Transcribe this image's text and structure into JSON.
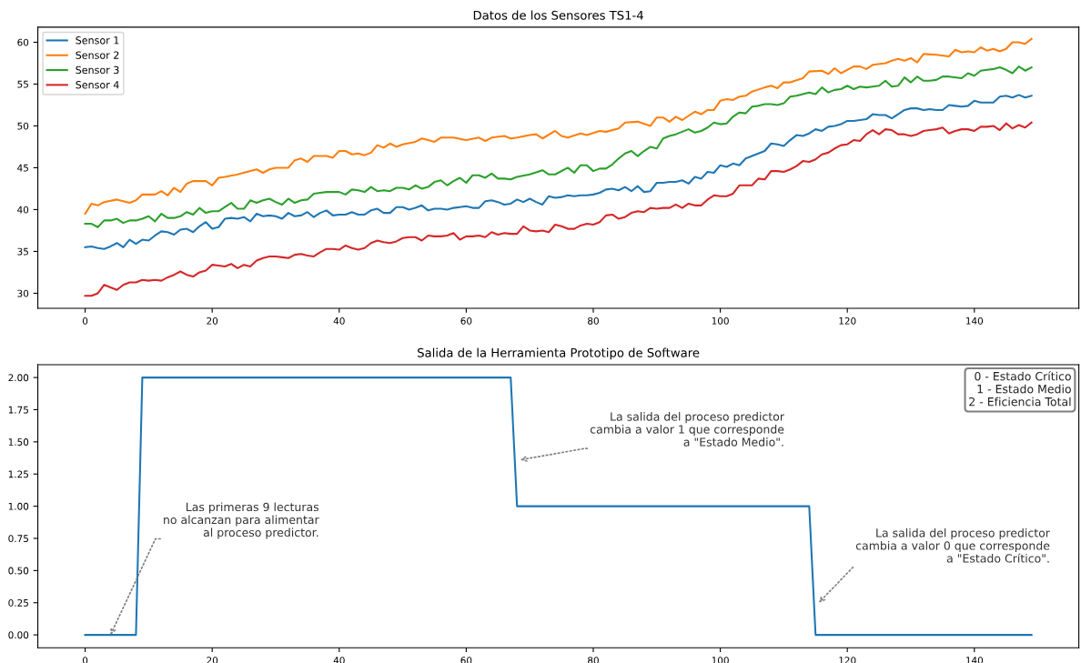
{
  "chart_data": [
    {
      "type": "line",
      "title": "Datos de los Sensores TS1-4",
      "legend": "top left",
      "xlim": [
        -7.45,
        156.45
      ],
      "ylim": [
        28.2,
        61.8
      ],
      "xticks": [
        0,
        20,
        40,
        60,
        80,
        100,
        120,
        140
      ],
      "yticks": [
        30,
        35,
        40,
        45,
        50,
        55,
        60
      ],
      "series": [
        {
          "name": "Sensor 1",
          "color": "#1f77b4",
          "x": [
            0,
            1,
            2,
            3,
            4,
            5,
            6,
            7,
            8,
            9,
            10,
            11,
            12,
            13,
            14,
            15,
            16,
            17,
            18,
            19,
            20,
            21,
            22,
            23,
            24,
            25,
            26,
            27,
            28,
            29,
            30,
            31,
            32,
            33,
            34,
            35,
            36,
            37,
            38,
            39,
            40,
            41,
            42,
            43,
            44,
            45,
            46,
            47,
            48,
            49,
            50,
            51,
            52,
            53,
            54,
            55,
            56,
            57,
            58,
            59,
            60,
            61,
            62,
            63,
            64,
            65,
            66,
            67,
            68,
            69,
            70,
            71,
            72,
            73,
            74,
            75,
            76,
            77,
            78,
            79,
            80,
            81,
            82,
            83,
            84,
            85,
            86,
            87,
            88,
            89,
            90,
            91,
            92,
            93,
            94,
            95,
            96,
            97,
            98,
            99,
            100,
            101,
            102,
            103,
            104,
            105,
            106,
            107,
            108,
            109,
            110,
            111,
            112,
            113,
            114,
            115,
            116,
            117,
            118,
            119,
            120,
            121,
            122,
            123,
            124,
            125,
            126,
            127,
            128,
            129,
            130,
            131,
            132,
            133,
            134,
            135,
            136,
            137,
            138,
            139,
            140,
            141,
            142,
            143,
            144,
            145,
            146,
            147,
            148,
            149
          ],
          "values": [
            35.5,
            35.6,
            35.4,
            35.3,
            35.6,
            36.0,
            35.5,
            36.4,
            35.9,
            36.4,
            36.3,
            36.9,
            37.4,
            37.3,
            37.0,
            37.6,
            37.7,
            37.3,
            38.0,
            38.5,
            37.7,
            37.9,
            38.9,
            39.0,
            38.9,
            39.1,
            38.6,
            39.5,
            39.2,
            39.3,
            39.2,
            38.9,
            39.6,
            39.2,
            39.3,
            39.7,
            39.1,
            39.6,
            39.9,
            39.3,
            39.4,
            39.4,
            39.7,
            39.4,
            39.4,
            39.9,
            40.1,
            39.6,
            39.6,
            40.3,
            40.3,
            40.0,
            40.2,
            40.5,
            39.9,
            40.1,
            40.1,
            40.0,
            40.2,
            40.3,
            40.4,
            40.2,
            40.2,
            41.0,
            41.1,
            40.9,
            40.6,
            40.7,
            41.2,
            40.9,
            41.3,
            40.9,
            40.6,
            41.6,
            41.4,
            41.5,
            41.7,
            41.6,
            41.7,
            41.7,
            41.8,
            42.0,
            42.4,
            42.5,
            42.3,
            42.7,
            42.2,
            42.8,
            42.1,
            42.2,
            43.2,
            43.2,
            43.3,
            43.3,
            43.5,
            43.1,
            43.9,
            43.7,
            44.5,
            44.4,
            45.3,
            45.1,
            45.5,
            45.3,
            46.1,
            46.4,
            46.7,
            47.0,
            47.9,
            47.8,
            47.6,
            48.3,
            48.9,
            48.8,
            49.1,
            49.6,
            49.4,
            49.9,
            50.0,
            50.2,
            50.6,
            50.6,
            50.7,
            50.8,
            51.4,
            51.3,
            51.3,
            50.9,
            51.4,
            51.9,
            52.1,
            52.1,
            51.9,
            52.0,
            51.9,
            51.9,
            52.5,
            52.4,
            52.3,
            52.4,
            53.0,
            52.8,
            52.8,
            52.8,
            53.5,
            53.6,
            53.4,
            53.7,
            53.4,
            53.6
          ]
        },
        {
          "name": "Sensor 2",
          "color": "#ff7f0e",
          "x": [
            0,
            1,
            2,
            3,
            5,
            7,
            8,
            9,
            11,
            12,
            13,
            14,
            15,
            16,
            17,
            19,
            20,
            21,
            22,
            24,
            26,
            27,
            28,
            29,
            30,
            32,
            33,
            34,
            35,
            36,
            38,
            39,
            40,
            41,
            42,
            43,
            44,
            45,
            46,
            47,
            48,
            49,
            50,
            52,
            53,
            54,
            55,
            56,
            58,
            60,
            62,
            63,
            64,
            66,
            67,
            68,
            70,
            71,
            72,
            74,
            75,
            76,
            78,
            79,
            81,
            82,
            84,
            85,
            87,
            89,
            90,
            91,
            92,
            93,
            94,
            96,
            97,
            98,
            99,
            100,
            101,
            102,
            103,
            104,
            105,
            107,
            108,
            109,
            110,
            111,
            113,
            114,
            116,
            117,
            118,
            119,
            121,
            122,
            123,
            124,
            126,
            127,
            128,
            129,
            130,
            131,
            132,
            134,
            136,
            137,
            138,
            139,
            140,
            141,
            142,
            143,
            144,
            145,
            146,
            147,
            148,
            149
          ],
          "values": [
            39.5,
            40.7,
            40.5,
            40.9,
            41.2,
            40.8,
            41.1,
            41.8,
            41.8,
            42.2,
            41.7,
            42.6,
            42.1,
            43.1,
            43.4,
            43.4,
            42.9,
            43.8,
            43.9,
            44.2,
            44.6,
            44.8,
            44.4,
            44.8,
            45.0,
            45.0,
            45.9,
            46.1,
            45.7,
            46.4,
            46.4,
            46.2,
            47.0,
            47.0,
            46.6,
            46.7,
            46.5,
            46.8,
            47.7,
            47.4,
            47.9,
            47.5,
            47.8,
            48.1,
            48.5,
            48.3,
            48.1,
            48.6,
            48.6,
            48.3,
            48.6,
            48.2,
            48.6,
            48.8,
            48.5,
            48.6,
            48.9,
            49.0,
            48.5,
            49.4,
            48.8,
            48.6,
            49.1,
            48.9,
            49.4,
            49.3,
            49.7,
            50.4,
            50.5,
            50.0,
            51.0,
            51.0,
            50.5,
            51.1,
            50.7,
            51.7,
            51.4,
            51.9,
            51.9,
            53.0,
            53.2,
            53.1,
            53.5,
            53.6,
            54.1,
            54.6,
            54.8,
            54.5,
            55.2,
            55.2,
            55.7,
            56.5,
            56.6,
            56.2,
            56.9,
            56.3,
            57.1,
            57.1,
            56.8,
            57.3,
            57.5,
            57.8,
            58.0,
            57.8,
            58.1,
            57.6,
            58.6,
            58.5,
            58.3,
            59.1,
            58.8,
            58.9,
            58.8,
            59.4,
            59.0,
            59.2,
            58.9,
            59.2,
            60.0,
            60.0,
            59.8,
            60.4
          ]
        },
        {
          "name": "Sensor 3",
          "color": "#2ca02c",
          "x": [
            0,
            1,
            2,
            3,
            4,
            5,
            6,
            7,
            8,
            9,
            10,
            11,
            12,
            13,
            14,
            15,
            16,
            17,
            18,
            19,
            20,
            21,
            22,
            23,
            24,
            25,
            26,
            27,
            28,
            29,
            30,
            31,
            32,
            33,
            34,
            35,
            36,
            37,
            38,
            40,
            41,
            42,
            43,
            44,
            45,
            46,
            47,
            48,
            49,
            50,
            51,
            52,
            53,
            54,
            55,
            56,
            57,
            58,
            59,
            60,
            61,
            62,
            63,
            64,
            65,
            66,
            67,
            68,
            70,
            72,
            73,
            74,
            76,
            77,
            78,
            79,
            80,
            81,
            82,
            83,
            84,
            85,
            86,
            87,
            88,
            89,
            90,
            91,
            92,
            93,
            94,
            95,
            96,
            97,
            98,
            99,
            100,
            101,
            102,
            103,
            104,
            105,
            106,
            107,
            108,
            109,
            110,
            111,
            112,
            113,
            114,
            115,
            116,
            117,
            118,
            119,
            120,
            121,
            122,
            123,
            124,
            125,
            126,
            127,
            128,
            129,
            130,
            131,
            132,
            133,
            134,
            135,
            136,
            138,
            139,
            140,
            141,
            142,
            143,
            144,
            145,
            146,
            147,
            148,
            149
          ],
          "values": [
            38.3,
            38.3,
            37.9,
            38.7,
            38.7,
            38.9,
            38.4,
            38.7,
            38.7,
            38.9,
            39.2,
            38.6,
            39.5,
            39.0,
            39.0,
            39.2,
            39.7,
            39.4,
            40.2,
            39.6,
            39.8,
            39.8,
            40.3,
            40.8,
            40.1,
            40.1,
            41.1,
            40.8,
            41.1,
            41.3,
            40.9,
            40.6,
            41.3,
            40.8,
            41.1,
            41.2,
            41.9,
            42.0,
            42.1,
            42.1,
            41.8,
            42.4,
            42.3,
            42.1,
            42.7,
            42.2,
            42.3,
            42.2,
            42.6,
            42.6,
            42.4,
            42.9,
            42.5,
            42.7,
            43.3,
            43.5,
            42.9,
            43.4,
            43.8,
            43.2,
            44.1,
            44.1,
            43.8,
            44.3,
            43.7,
            43.7,
            43.6,
            43.9,
            44.2,
            44.7,
            44.2,
            44.2,
            45.0,
            44.4,
            45.3,
            45.3,
            44.6,
            44.9,
            44.9,
            45.4,
            46.1,
            46.7,
            47.0,
            46.4,
            47.0,
            47.5,
            47.3,
            48.5,
            48.8,
            49.0,
            49.3,
            49.6,
            49.2,
            49.4,
            49.8,
            50.4,
            50.2,
            50.3,
            51.1,
            51.6,
            51.5,
            52.3,
            52.4,
            52.6,
            52.6,
            52.5,
            52.7,
            53.5,
            53.6,
            53.8,
            54.0,
            53.8,
            54.6,
            54.0,
            54.3,
            54.4,
            54.8,
            54.4,
            54.7,
            54.6,
            54.7,
            54.8,
            55.4,
            54.7,
            54.8,
            55.8,
            55.2,
            55.9,
            55.4,
            55.4,
            55.5,
            55.9,
            55.9,
            55.7,
            56.3,
            56.0,
            56.6,
            56.7,
            56.8,
            57.0,
            56.7,
            56.3,
            57.1,
            56.6,
            57.0
          ]
        },
        {
          "name": "Sensor 4",
          "color": "#d62728",
          "x": [
            0,
            1,
            2,
            3,
            4,
            5,
            6,
            7,
            8,
            9,
            10,
            11,
            12,
            13,
            14,
            15,
            16,
            17,
            18,
            19,
            20,
            21,
            22,
            23,
            24,
            25,
            26,
            27,
            28,
            29,
            30,
            31,
            32,
            33,
            34,
            35,
            36,
            37,
            38,
            39,
            40,
            41,
            42,
            43,
            44,
            45,
            46,
            47,
            48,
            49,
            50,
            51,
            52,
            53,
            54,
            55,
            56,
            57,
            58,
            59,
            60,
            61,
            62,
            63,
            64,
            65,
            66,
            67,
            68,
            69,
            70,
            71,
            72,
            73,
            74,
            75,
            76,
            77,
            78,
            79,
            80,
            81,
            82,
            83,
            84,
            85,
            86,
            87,
            88,
            89,
            90,
            91,
            92,
            93,
            94,
            95,
            96,
            97,
            98,
            99,
            100,
            101,
            102,
            103,
            104,
            105,
            106,
            107,
            108,
            109,
            110,
            111,
            112,
            113,
            114,
            115,
            116,
            117,
            118,
            119,
            120,
            121,
            122,
            123,
            124,
            125,
            126,
            127,
            128,
            129,
            130,
            131,
            132,
            133,
            134,
            135,
            136,
            137,
            138,
            139,
            140,
            141,
            142,
            143,
            144,
            145,
            146,
            147,
            148,
            149
          ],
          "values": [
            29.7,
            29.7,
            30.0,
            31.0,
            30.7,
            30.4,
            31.0,
            31.3,
            31.3,
            31.6,
            31.5,
            31.6,
            31.5,
            31.9,
            32.2,
            32.6,
            32.2,
            32.0,
            32.5,
            32.7,
            33.4,
            33.3,
            33.2,
            33.5,
            33.0,
            33.4,
            33.2,
            33.9,
            34.2,
            34.4,
            34.4,
            34.3,
            34.2,
            34.6,
            34.7,
            34.5,
            34.4,
            34.9,
            35.3,
            35.3,
            35.2,
            35.7,
            35.4,
            35.2,
            35.4,
            36.0,
            36.3,
            36.1,
            36.0,
            36.2,
            36.6,
            36.7,
            36.7,
            36.3,
            36.9,
            36.8,
            36.8,
            36.9,
            37.2,
            36.4,
            36.8,
            36.8,
            36.9,
            36.7,
            37.3,
            37.0,
            37.2,
            37.1,
            37.1,
            38.0,
            37.5,
            37.4,
            37.5,
            37.3,
            38.2,
            38.0,
            37.7,
            37.7,
            38.1,
            38.3,
            38.2,
            38.5,
            39.3,
            39.4,
            38.9,
            39.1,
            39.6,
            39.8,
            39.7,
            40.2,
            40.1,
            40.2,
            40.2,
            40.6,
            40.2,
            40.7,
            40.5,
            40.5,
            41.2,
            41.7,
            41.6,
            41.6,
            41.9,
            42.9,
            42.9,
            42.9,
            43.7,
            43.6,
            44.6,
            44.6,
            44.5,
            44.8,
            45.2,
            45.8,
            45.7,
            46.0,
            46.6,
            46.8,
            47.3,
            47.7,
            47.8,
            48.3,
            48.2,
            49.0,
            49.5,
            49.0,
            49.6,
            49.5,
            49.0,
            49.0,
            48.8,
            49.0,
            49.4,
            49.5,
            49.6,
            49.8,
            49.1,
            49.4,
            49.6,
            49.6,
            49.4,
            49.9,
            49.9,
            50.0,
            49.5,
            50.3,
            49.7,
            50.1,
            49.8,
            50.4
          ]
        }
      ]
    },
    {
      "type": "line",
      "title": "Salida de la Herramienta Prototipo de Software",
      "xlim": [
        -7.45,
        156.45
      ],
      "ylim": [
        -0.1,
        2.1
      ],
      "xticks": [
        0,
        20,
        40,
        60,
        80,
        100,
        120,
        140
      ],
      "yticks": [
        {
          "value": 0,
          "label": "0.00"
        },
        {
          "value": 0.25,
          "label": "0.25"
        },
        {
          "value": 0.5,
          "label": "0.50"
        },
        {
          "value": 0.75,
          "label": "0.75"
        },
        {
          "value": 1,
          "label": "1.00"
        },
        {
          "value": 1.25,
          "label": "1.25"
        },
        {
          "value": 1.5,
          "label": "1.50"
        },
        {
          "value": 1.75,
          "label": "1.75"
        },
        {
          "value": 2,
          "label": "2.00"
        }
      ],
      "series": [
        {
          "color": "#1f77b4",
          "x": [
            0,
            8,
            9,
            67,
            68,
            114,
            115,
            149
          ],
          "values": [
            0,
            0,
            2,
            2,
            1,
            1,
            0,
            0
          ]
        }
      ],
      "annotations": [
        {
          "text": "Las primeras 9 lecturas\nno alcanzan para alimentar\nal proceso predictor.",
          "x": 4,
          "y": 0
        },
        {
          "text": "La salida del proceso predictor\ncambia a valor 1 que corresponde\na \"Estado Medio\".",
          "x": 68.5,
          "y": 1.36
        },
        {
          "text": "La salida del proceso predictor\ncambia a valor 0 que corresponde\na \"Estado Crítico\".",
          "x": 115.5,
          "y": 0.25
        },
        "0 - Estado Crítico\n1 - Estado Medio\n2 - Eficiencia Total"
      ]
    }
  ]
}
